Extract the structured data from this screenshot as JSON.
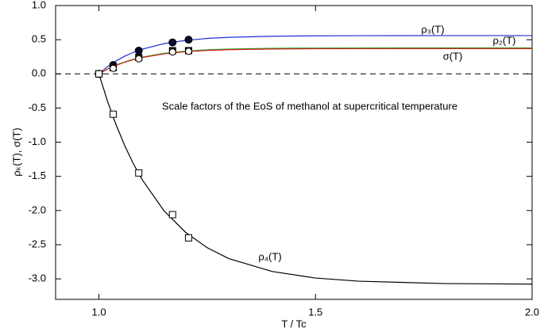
{
  "chart_data": {
    "type": "line",
    "annotation": "Scale factors of the EoS of methanol at supercritical temperature",
    "xlabel": "T / Tc",
    "ylabel": "ρₖ(T), σ(T)",
    "xlim": [
      0.9,
      2.0
    ],
    "ylim": [
      -3.3,
      1.0
    ],
    "xticks": [
      {
        "value": 1,
        "label": "1.0"
      },
      1.5,
      {
        "value": 2,
        "label": "2.0"
      }
    ],
    "yticks": [
      {
        "value": 1,
        "label": "1.0"
      },
      0.5,
      {
        "value": 0,
        "label": "0.0"
      },
      -0.5,
      {
        "value": -1,
        "label": "-1.0"
      },
      -1.5,
      {
        "value": -2,
        "label": "-2.0"
      },
      -2.5,
      {
        "value": -3,
        "label": "-3.0"
      }
    ],
    "reference_line": 0,
    "x": [
      1.0,
      1.02,
      1.04,
      1.06,
      1.08,
      1.1,
      1.15,
      1.2,
      1.25,
      1.3,
      1.4,
      1.5,
      1.6,
      1.8,
      2.0
    ],
    "marker_x": [
      1.0,
      1.033,
      1.092,
      1.17,
      1.207
    ],
    "series": [
      {
        "name": "ρ₃(T)",
        "color": "#1f2fd6",
        "marker": "filled-circle",
        "values": [
          0,
          0.105,
          0.191,
          0.26,
          0.316,
          0.362,
          0.442,
          0.49,
          0.519,
          0.535,
          0.551,
          0.557,
          0.559,
          0.56,
          0.56
        ],
        "marker_values": [
          0,
          0.13,
          0.34,
          0.46,
          0.5
        ]
      },
      {
        "name": "ρ₂(T)",
        "color": "#1ea81e",
        "marker": "filled-square",
        "values": [
          0,
          0.071,
          0.13,
          0.176,
          0.215,
          0.246,
          0.3,
          0.333,
          0.352,
          0.363,
          0.374,
          0.378,
          0.379,
          0.38,
          0.38
        ],
        "marker_values": [
          0,
          0.09,
          0.24,
          0.34,
          0.34
        ]
      },
      {
        "name": "σ(T)",
        "color": "#d42020",
        "marker": "open-circle",
        "values": [
          0,
          0.07,
          0.126,
          0.172,
          0.209,
          0.239,
          0.292,
          0.324,
          0.343,
          0.354,
          0.364,
          0.368,
          0.369,
          0.37,
          0.37
        ],
        "marker_values": [
          0,
          0.08,
          0.22,
          0.32,
          0.33
        ]
      },
      {
        "name": "ρ₄(T)",
        "color": "#000000",
        "marker": "open-square",
        "values": [
          0,
          -0.403,
          -0.752,
          -1.056,
          -1.321,
          -1.549,
          -2.002,
          -2.319,
          -2.544,
          -2.704,
          -2.892,
          -2.988,
          -3.034,
          -3.069,
          -3.077
        ],
        "marker_values": [
          0,
          -0.59,
          -1.45,
          -2.06,
          -2.4
        ]
      }
    ]
  }
}
